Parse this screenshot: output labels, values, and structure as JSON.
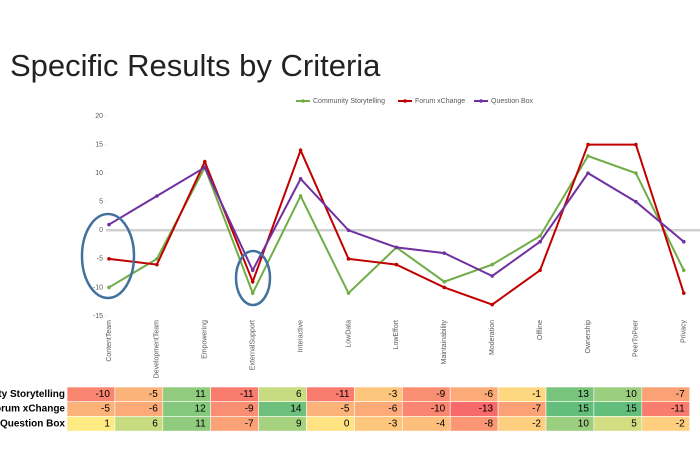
{
  "chart_data": {
    "type": "line",
    "title": "Specific Results by Criteria",
    "categories": [
      "ContentTeam",
      "DevelopmentTeam",
      "Empowering",
      "ExternalSupport",
      "Interactive",
      "LowData",
      "LowEffort",
      "Maintainability",
      "Moderation",
      "Offline",
      "Ownership",
      "PeerToPeer",
      "Privacy"
    ],
    "series": [
      {
        "name": "Community Storytelling",
        "color": "#70ad47",
        "values": [
          -10,
          -5,
          11,
          -11,
          6,
          -11,
          -3,
          -9,
          -6,
          -1,
          13,
          10,
          -7
        ]
      },
      {
        "name": "Forum xChange",
        "color": "#c00000",
        "values": [
          -5,
          -6,
          12,
          -9,
          14,
          -5,
          -6,
          -10,
          -13,
          -7,
          15,
          15,
          -11
        ]
      },
      {
        "name": "Question Box",
        "color": "#7030a0",
        "values": [
          1,
          6,
          11,
          -7,
          9,
          0,
          -3,
          -4,
          -8,
          -2,
          10,
          5,
          -2
        ]
      }
    ],
    "ylim": [
      -15,
      20
    ],
    "yticks": [
      -15,
      -10,
      -5,
      0,
      5,
      10,
      15,
      20
    ],
    "legend": "top"
  }
}
